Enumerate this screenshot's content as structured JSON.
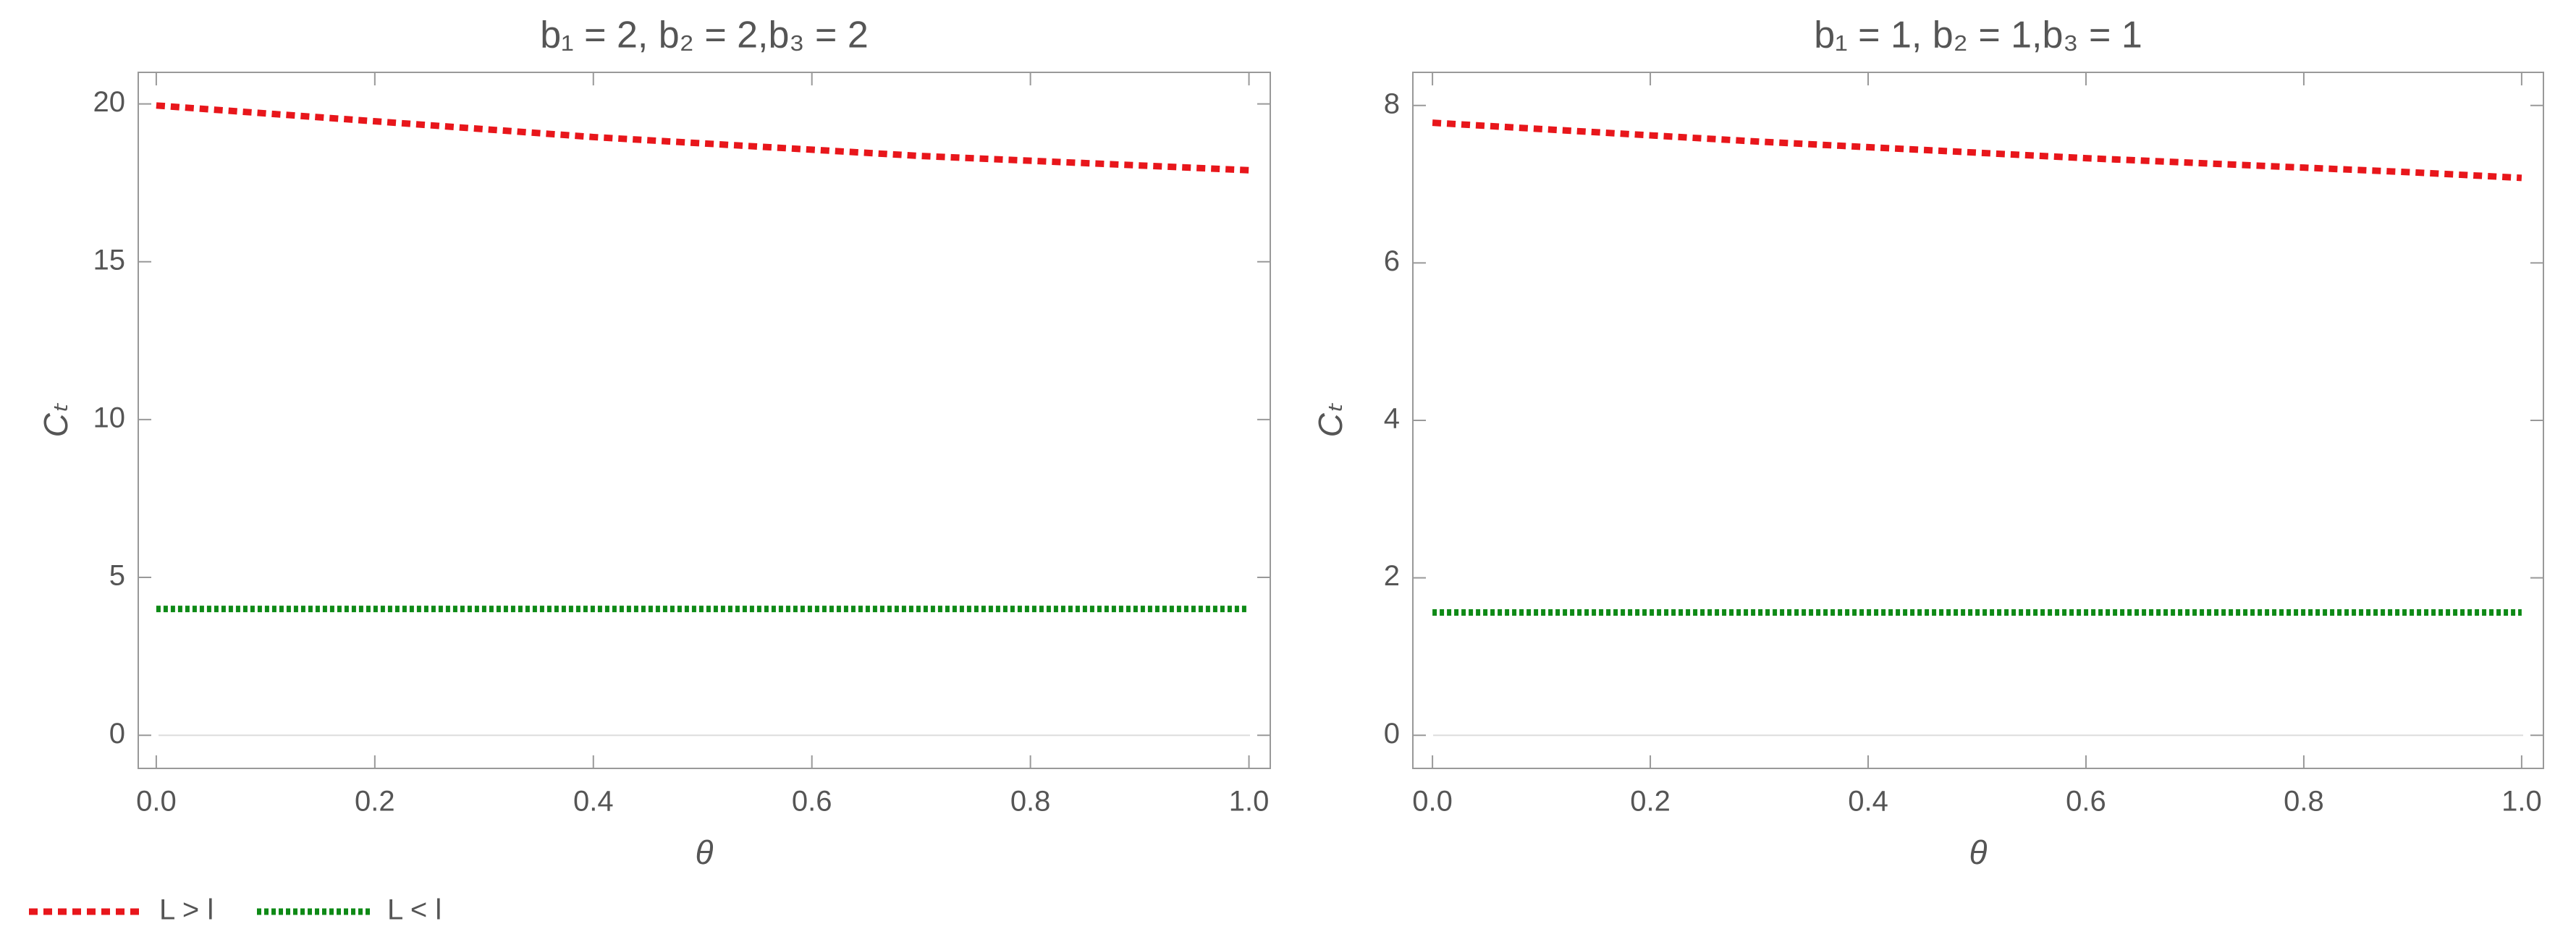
{
  "chart_data": [
    {
      "type": "line",
      "title": "b₁ = 2, b₂ = 2,b₃ = 2",
      "xlabel": "θ",
      "ylabel": "Cₜ",
      "x": [
        0,
        0.1,
        0.2,
        0.3,
        0.4,
        0.5,
        0.6,
        0.7,
        0.8,
        0.9,
        1.0
      ],
      "series": [
        {
          "name": "L > l",
          "color": "#e8161b",
          "values": [
            19.95,
            19.7,
            19.45,
            19.2,
            18.95,
            18.75,
            18.55,
            18.35,
            18.2,
            18.05,
            17.9
          ]
        },
        {
          "name": "L < l",
          "color": "#0e8a16",
          "values": [
            4,
            4,
            4,
            4,
            4,
            4,
            4,
            4,
            4,
            4,
            4
          ]
        }
      ],
      "xlim": [
        -0.0165,
        1.0195
      ],
      "xticks": [
        {
          "value": 0,
          "label": "0.0"
        },
        0.2,
        0.4,
        0.6,
        0.8,
        {
          "value": 1,
          "label": "1.0"
        }
      ],
      "ylim": [
        -1.05,
        21
      ],
      "yticks": [
        0,
        5,
        10,
        15,
        20
      ]
    },
    {
      "type": "line",
      "title": "b₁ = 1, b₂ = 1,b₃ = 1",
      "xlabel": "θ",
      "ylabel": "Cₜ",
      "x": [
        0,
        0.1,
        0.2,
        0.3,
        0.4,
        0.5,
        0.6,
        0.7,
        0.8,
        0.9,
        1.0
      ],
      "series": [
        {
          "color": "#e8161b",
          "values": [
            7.78,
            7.7,
            7.62,
            7.54,
            7.47,
            7.4,
            7.33,
            7.27,
            7.21,
            7.15,
            7.08
          ]
        },
        {
          "color": "#0e8a16",
          "values": [
            1.56,
            1.56,
            1.56,
            1.56,
            1.56,
            1.56,
            1.56,
            1.56,
            1.56,
            1.56,
            1.56
          ]
        }
      ],
      "xlim": [
        -0.018,
        1.02
      ],
      "xticks": [
        {
          "value": 0,
          "label": "0.0"
        },
        0.2,
        0.4,
        0.6,
        0.8,
        {
          "value": 1,
          "label": "1.0"
        }
      ],
      "ylim": [
        -0.42,
        8.42
      ],
      "yticks": [
        0,
        2,
        4,
        6,
        8
      ]
    }
  ]
}
